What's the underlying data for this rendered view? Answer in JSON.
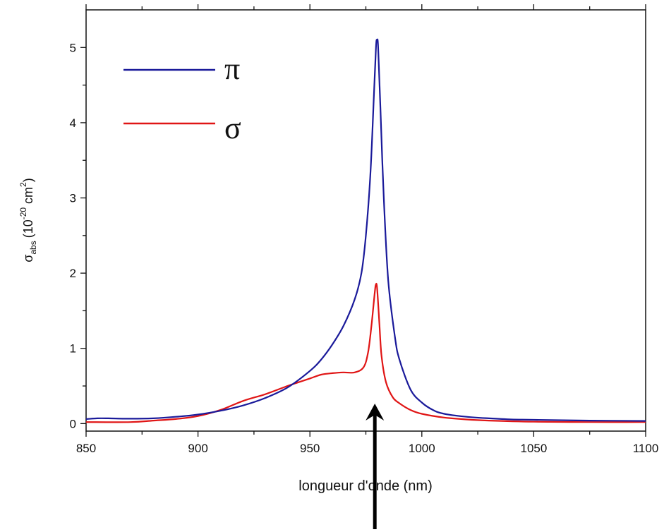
{
  "chart_data": {
    "type": "line",
    "xlabel": "longueur d'onde (nm)",
    "ylabel": {
      "symbol": "σ",
      "subscript": "abs",
      "open": "(10",
      "exponent": "-20",
      "unit": "cm",
      "unit_exponent": "2",
      "close": ")"
    },
    "xlim": [
      850,
      1100
    ],
    "ylim": [
      -0.1,
      5.5
    ],
    "x_ticks": [
      "850",
      "900",
      "950",
      "1000",
      "1050",
      "1100"
    ],
    "y_ticks": [
      "0",
      "1",
      "2",
      "3",
      "4",
      "5"
    ],
    "legend_position": "top-left",
    "arrow_at_x": 979,
    "series": [
      {
        "name": "π",
        "color": "#1a1a9a",
        "points": [
          [
            850,
            0.06
          ],
          [
            855,
            0.07
          ],
          [
            860,
            0.07
          ],
          [
            870,
            0.065
          ],
          [
            880,
            0.07
          ],
          [
            890,
            0.09
          ],
          [
            900,
            0.12
          ],
          [
            910,
            0.17
          ],
          [
            920,
            0.24
          ],
          [
            930,
            0.34
          ],
          [
            940,
            0.48
          ],
          [
            950,
            0.7
          ],
          [
            955,
            0.85
          ],
          [
            960,
            1.05
          ],
          [
            965,
            1.3
          ],
          [
            970,
            1.65
          ],
          [
            973,
            2.0
          ],
          [
            975,
            2.5
          ],
          [
            977,
            3.3
          ],
          [
            978.5,
            4.3
          ],
          [
            979.5,
            5.0
          ],
          [
            980,
            5.1
          ],
          [
            980.5,
            5.0
          ],
          [
            981.5,
            4.2
          ],
          [
            983,
            3.0
          ],
          [
            985,
            1.9
          ],
          [
            988,
            1.15
          ],
          [
            990,
            0.85
          ],
          [
            995,
            0.45
          ],
          [
            1000,
            0.28
          ],
          [
            1005,
            0.18
          ],
          [
            1010,
            0.13
          ],
          [
            1020,
            0.09
          ],
          [
            1030,
            0.07
          ],
          [
            1040,
            0.055
          ],
          [
            1050,
            0.05
          ],
          [
            1075,
            0.04
          ],
          [
            1100,
            0.035
          ]
        ]
      },
      {
        "name": "σ",
        "color": "#e01515",
        "points": [
          [
            850,
            0.02
          ],
          [
            870,
            0.02
          ],
          [
            880,
            0.04
          ],
          [
            890,
            0.06
          ],
          [
            900,
            0.1
          ],
          [
            910,
            0.18
          ],
          [
            920,
            0.3
          ],
          [
            930,
            0.39
          ],
          [
            940,
            0.5
          ],
          [
            945,
            0.55
          ],
          [
            950,
            0.6
          ],
          [
            955,
            0.65
          ],
          [
            960,
            0.67
          ],
          [
            965,
            0.68
          ],
          [
            970,
            0.68
          ],
          [
            974,
            0.75
          ],
          [
            976,
            0.95
          ],
          [
            977.5,
            1.3
          ],
          [
            979,
            1.75
          ],
          [
            979.5,
            1.85
          ],
          [
            980,
            1.8
          ],
          [
            981,
            1.35
          ],
          [
            982,
            0.9
          ],
          [
            984,
            0.55
          ],
          [
            987,
            0.35
          ],
          [
            990,
            0.27
          ],
          [
            995,
            0.18
          ],
          [
            1000,
            0.13
          ],
          [
            1010,
            0.08
          ],
          [
            1020,
            0.055
          ],
          [
            1030,
            0.04
          ],
          [
            1050,
            0.025
          ],
          [
            1075,
            0.02
          ],
          [
            1100,
            0.02
          ]
        ]
      }
    ]
  }
}
